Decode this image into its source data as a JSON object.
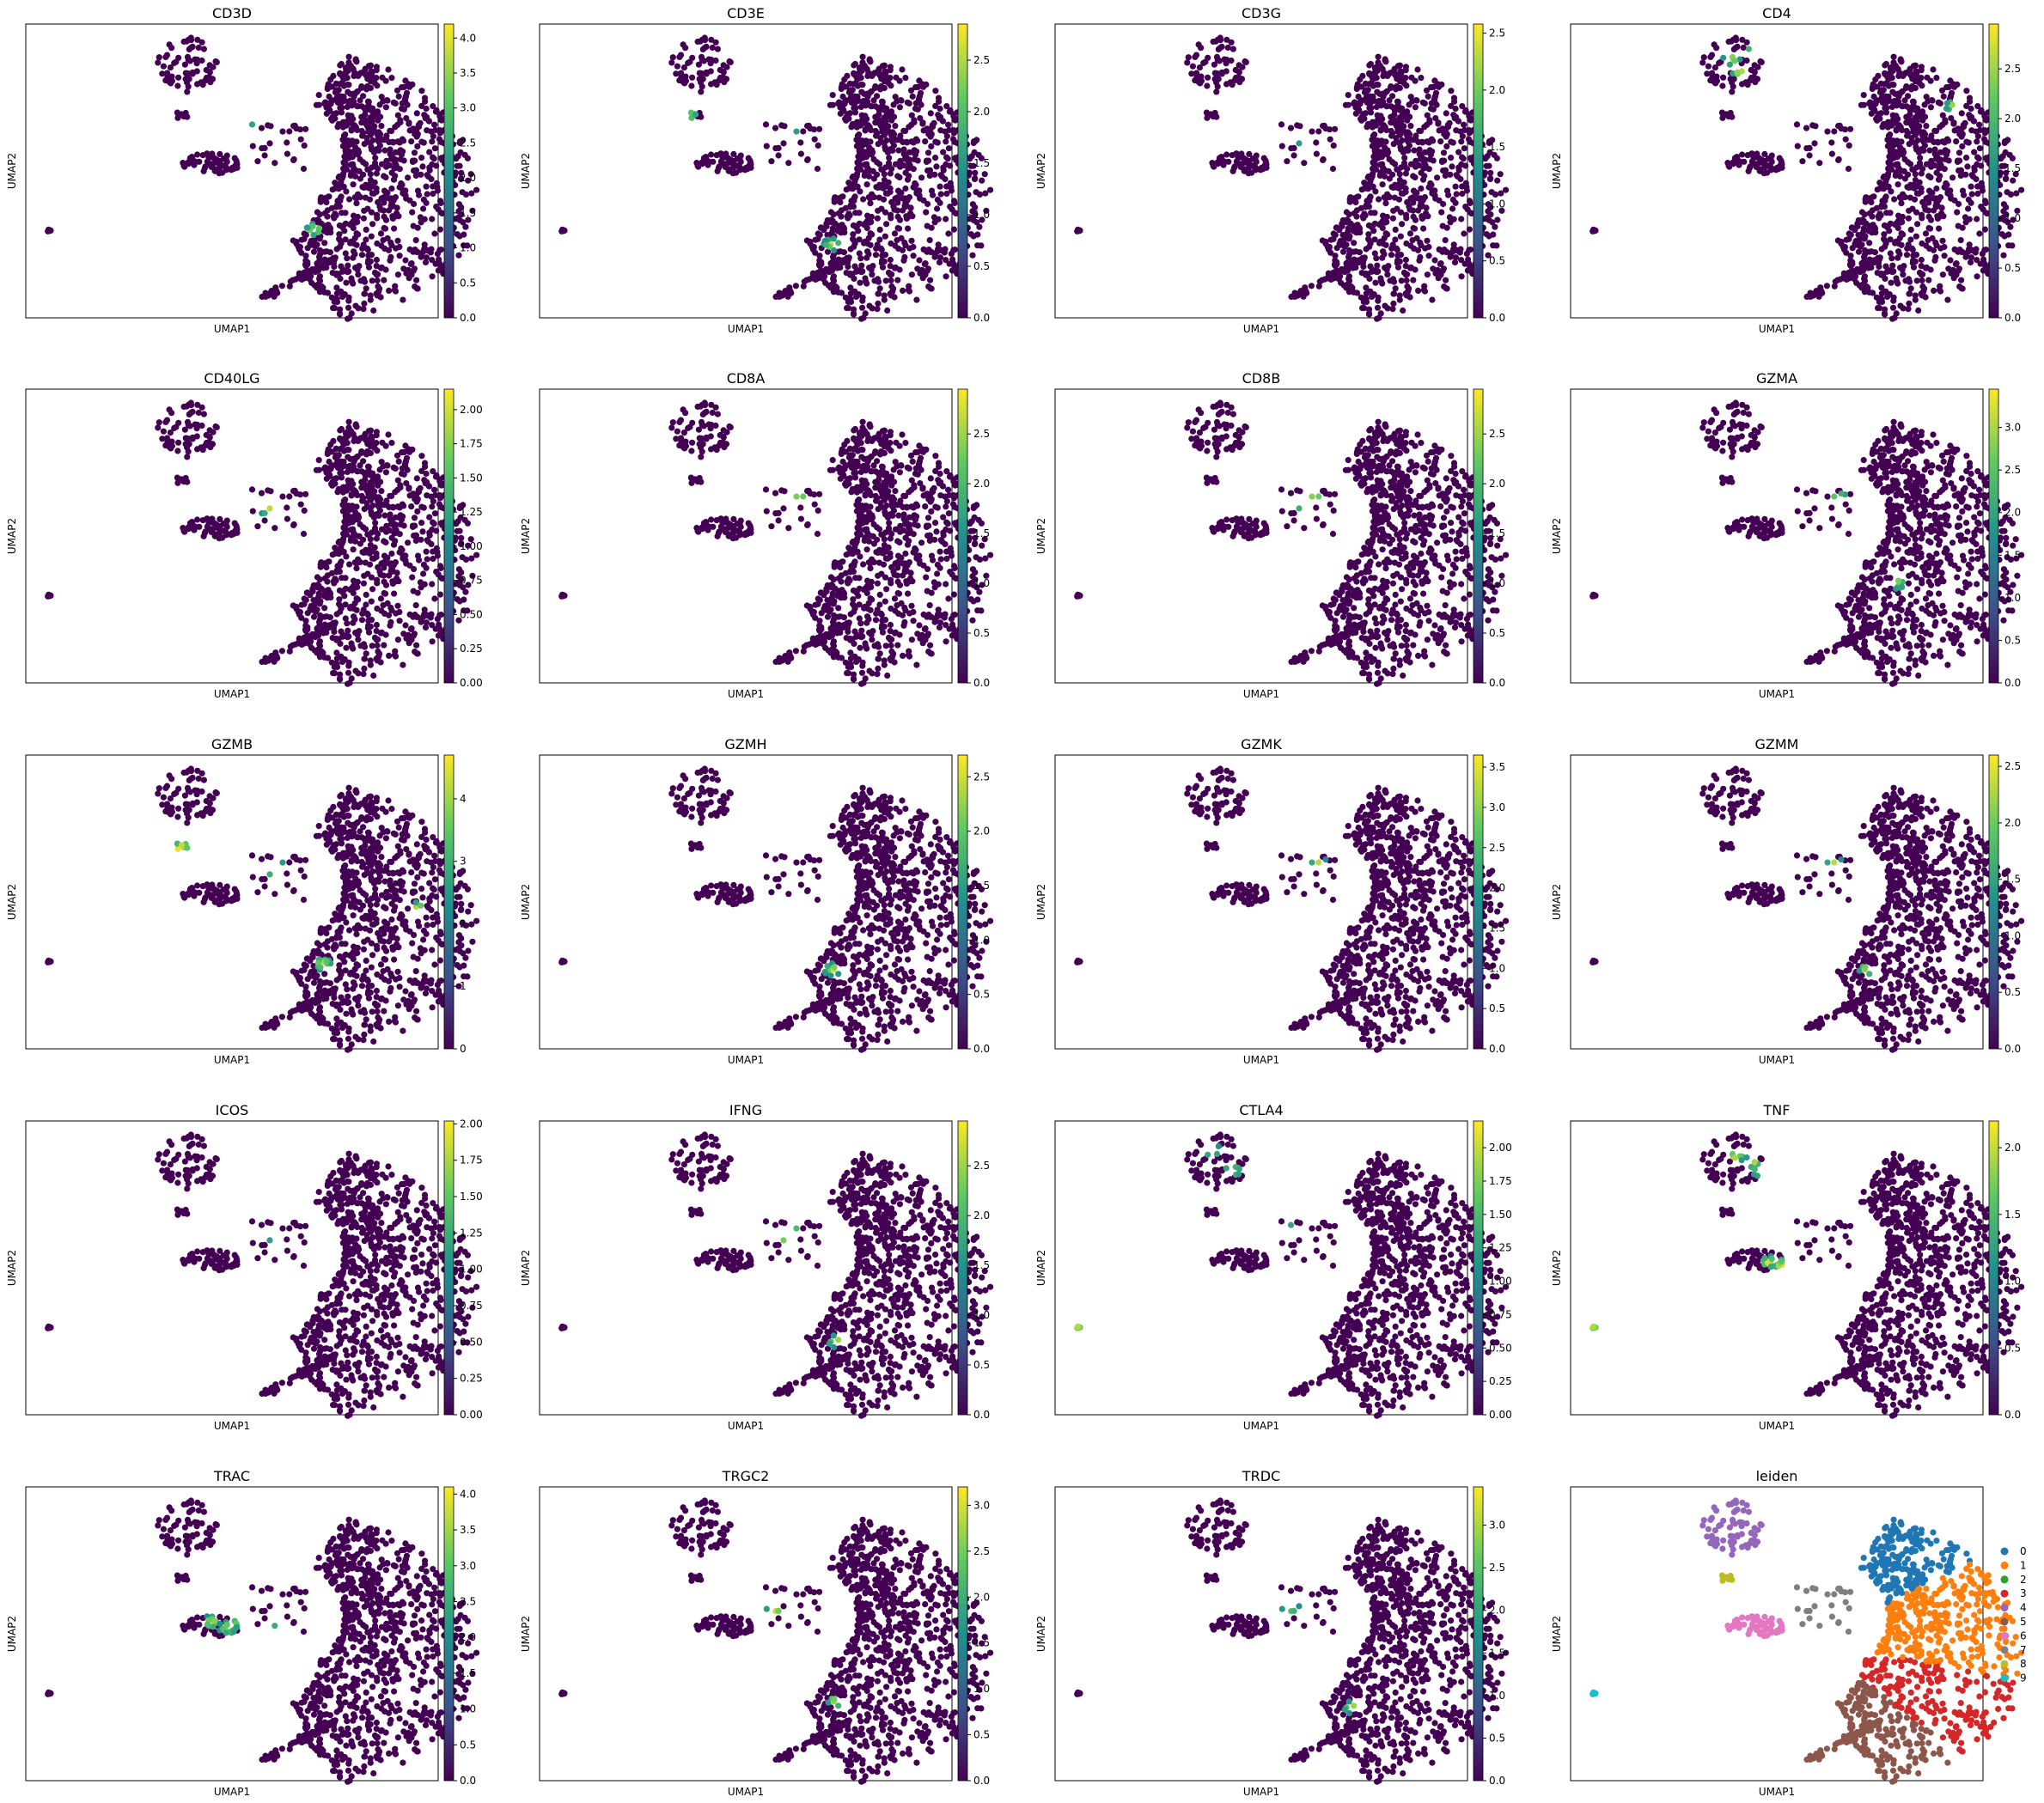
{
  "figure": {
    "xlabel": "UMAP1",
    "ylabel": "UMAP2",
    "colormap": "viridis",
    "colormap_stops": [
      "#440154",
      "#3b528b",
      "#21918c",
      "#5ec962",
      "#fde725"
    ],
    "background_point_color": "#440154"
  },
  "chart_data": [
    {
      "type": "scatter",
      "title": "CD3D",
      "vmax": 4.2,
      "ticks": [
        "0.0",
        "0.5",
        "1.0",
        "1.5",
        "2.0",
        "2.5",
        "3.0",
        "3.5",
        "4.0"
      ],
      "tick_values": [
        0,
        0.5,
        1,
        1.5,
        2,
        2.5,
        3,
        3.5,
        4
      ]
    },
    {
      "type": "scatter",
      "title": "CD3E",
      "vmax": 2.85,
      "ticks": [
        "0.0",
        "0.5",
        "1.0",
        "1.5",
        "2.0",
        "2.5"
      ],
      "tick_values": [
        0,
        0.5,
        1,
        1.5,
        2,
        2.5
      ]
    },
    {
      "type": "scatter",
      "title": "CD3G",
      "vmax": 2.58,
      "ticks": [
        "0.0",
        "0.5",
        "1.0",
        "1.5",
        "2.0",
        "2.5"
      ],
      "tick_values": [
        0,
        0.5,
        1,
        1.5,
        2,
        2.5
      ]
    },
    {
      "type": "scatter",
      "title": "CD4",
      "vmax": 2.95,
      "ticks": [
        "0.0",
        "0.5",
        "1.0",
        "1.5",
        "2.0",
        "2.5"
      ],
      "tick_values": [
        0,
        0.5,
        1,
        1.5,
        2,
        2.5
      ]
    },
    {
      "type": "scatter",
      "title": "CD40LG",
      "vmax": 2.15,
      "ticks": [
        "0.00",
        "0.25",
        "0.50",
        "0.75",
        "1.00",
        "1.25",
        "1.50",
        "1.75",
        "2.00"
      ],
      "tick_values": [
        0,
        0.25,
        0.5,
        0.75,
        1,
        1.25,
        1.5,
        1.75,
        2
      ]
    },
    {
      "type": "scatter",
      "title": "CD8A",
      "vmax": 2.95,
      "ticks": [
        "0.0",
        "0.5",
        "1.0",
        "1.5",
        "2.0",
        "2.5"
      ],
      "tick_values": [
        0,
        0.5,
        1,
        1.5,
        2,
        2.5
      ]
    },
    {
      "type": "scatter",
      "title": "CD8B",
      "vmax": 2.95,
      "ticks": [
        "0.0",
        "0.5",
        "1.0",
        "1.5",
        "2.0",
        "2.5"
      ],
      "tick_values": [
        0,
        0.5,
        1,
        1.5,
        2,
        2.5
      ]
    },
    {
      "type": "scatter",
      "title": "GZMA",
      "vmax": 3.45,
      "ticks": [
        "0.0",
        "0.5",
        "1.0",
        "1.5",
        "2.0",
        "2.5",
        "3.0"
      ],
      "tick_values": [
        0,
        0.5,
        1,
        1.5,
        2,
        2.5,
        3
      ]
    },
    {
      "type": "scatter",
      "title": "GZMB",
      "vmax": 4.7,
      "ticks": [
        "0",
        "1",
        "2",
        "3",
        "4"
      ],
      "tick_values": [
        0,
        1,
        2,
        3,
        4
      ]
    },
    {
      "type": "scatter",
      "title": "GZMH",
      "vmax": 2.7,
      "ticks": [
        "0.0",
        "0.5",
        "1.0",
        "1.5",
        "2.0",
        "2.5"
      ],
      "tick_values": [
        0,
        0.5,
        1,
        1.5,
        2,
        2.5
      ]
    },
    {
      "type": "scatter",
      "title": "GZMK",
      "vmax": 3.65,
      "ticks": [
        "0.0",
        "0.5",
        "1.0",
        "1.5",
        "2.0",
        "2.5",
        "3.0",
        "3.5"
      ],
      "tick_values": [
        0,
        0.5,
        1,
        1.5,
        2,
        2.5,
        3,
        3.5
      ]
    },
    {
      "type": "scatter",
      "title": "GZMM",
      "vmax": 2.6,
      "ticks": [
        "0.0",
        "0.5",
        "1.0",
        "1.5",
        "2.0",
        "2.5"
      ],
      "tick_values": [
        0,
        0.5,
        1,
        1.5,
        2,
        2.5
      ]
    },
    {
      "type": "scatter",
      "title": "ICOS",
      "vmax": 2.02,
      "ticks": [
        "0.00",
        "0.25",
        "0.50",
        "0.75",
        "1.00",
        "1.25",
        "1.50",
        "1.75",
        "2.00"
      ],
      "tick_values": [
        0,
        0.25,
        0.5,
        0.75,
        1,
        1.25,
        1.5,
        1.75,
        2
      ]
    },
    {
      "type": "scatter",
      "title": "IFNG",
      "vmax": 2.95,
      "ticks": [
        "0.0",
        "0.5",
        "1.0",
        "1.5",
        "2.0",
        "2.5"
      ],
      "tick_values": [
        0,
        0.5,
        1,
        1.5,
        2,
        2.5
      ]
    },
    {
      "type": "scatter",
      "title": "CTLA4",
      "vmax": 2.2,
      "ticks": [
        "0.00",
        "0.25",
        "0.50",
        "0.75",
        "1.00",
        "1.25",
        "1.50",
        "1.75",
        "2.00"
      ],
      "tick_values": [
        0,
        0.25,
        0.5,
        0.75,
        1,
        1.25,
        1.5,
        1.75,
        2
      ]
    },
    {
      "type": "scatter",
      "title": "TNF",
      "vmax": 2.2,
      "ticks": [
        "0.0",
        "0.5",
        "1.0",
        "1.5",
        "2.0"
      ],
      "tick_values": [
        0,
        0.5,
        1,
        1.5,
        2
      ]
    },
    {
      "type": "scatter",
      "title": "TRAC",
      "vmax": 4.1,
      "ticks": [
        "0.0",
        "0.5",
        "1.0",
        "1.5",
        "2.0",
        "2.5",
        "3.0",
        "3.5",
        "4.0"
      ],
      "tick_values": [
        0,
        0.5,
        1,
        1.5,
        2,
        2.5,
        3,
        3.5,
        4
      ]
    },
    {
      "type": "scatter",
      "title": "TRGC2",
      "vmax": 3.2,
      "ticks": [
        "0.0",
        "0.5",
        "1.0",
        "1.5",
        "2.0",
        "2.5",
        "3.0"
      ],
      "tick_values": [
        0,
        0.5,
        1,
        1.5,
        2,
        2.5,
        3
      ]
    },
    {
      "type": "scatter",
      "title": "TRDC",
      "vmax": 3.45,
      "ticks": [
        "0.0",
        "0.5",
        "1.0",
        "1.5",
        "2.0",
        "2.5",
        "3.0"
      ],
      "tick_values": [
        0,
        0.5,
        1,
        1.5,
        2,
        2.5,
        3
      ]
    },
    {
      "type": "scatter",
      "title": "leiden",
      "categorical": true,
      "legend": [
        {
          "label": "0",
          "color": "#1f77b4"
        },
        {
          "label": "1",
          "color": "#ff7f0e"
        },
        {
          "label": "2",
          "color": "#2ca02c"
        },
        {
          "label": "3",
          "color": "#d62728"
        },
        {
          "label": "4",
          "color": "#9467bd"
        },
        {
          "label": "5",
          "color": "#8c564b"
        },
        {
          "label": "6",
          "color": "#e377c2"
        },
        {
          "label": "7",
          "color": "#7f7f7f"
        },
        {
          "label": "8",
          "color": "#bcbd22"
        },
        {
          "label": "9",
          "color": "#17becf"
        }
      ]
    }
  ]
}
